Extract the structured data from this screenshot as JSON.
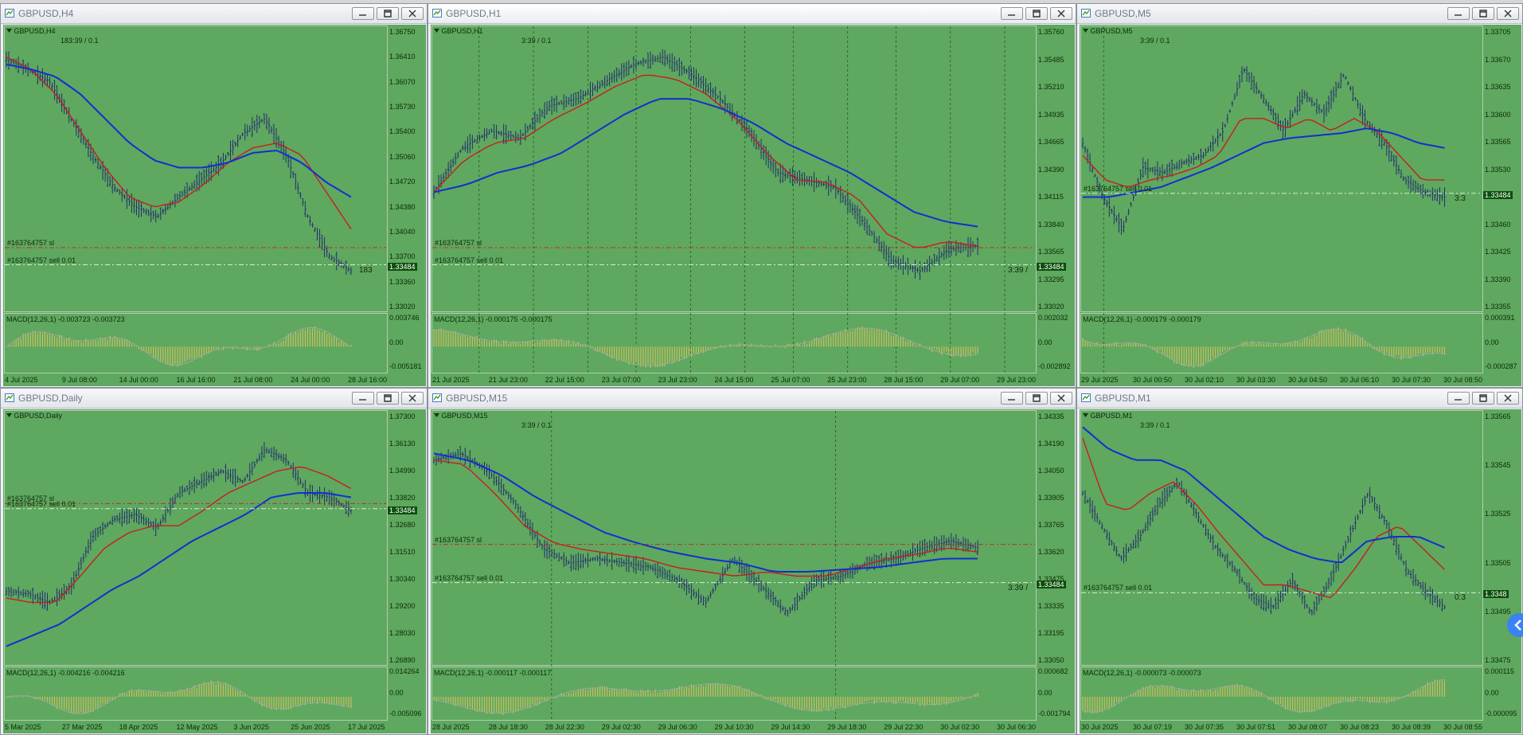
{
  "colors": {
    "chart_bg": "#5fa85f",
    "frame": "#b4cdb4",
    "ma_fast": "#c81e1e",
    "ma_slow": "#1030d0",
    "bars": "#23306e",
    "hist": "#c8c060",
    "order_sl": "#c82828",
    "order_line": "#d2f0d2"
  },
  "windows": [
    {
      "id": "h4",
      "title": "GBPUSD,H4",
      "label": "GBPUSD,H4",
      "timer": "183:39 / 0.1",
      "sl_label": "#163764757 sl",
      "order_label": "#163764757 sell 0.01",
      "price_ticks": [
        "1.36750",
        "1.36410",
        "1.36070",
        "1.35730",
        "1.35400",
        "1.35060",
        "1.34720",
        "1.34380",
        "1.34040",
        "1.33700",
        "1.33360",
        "1.33020"
      ],
      "current_price": "1.33484",
      "macd_label": "MACD(12,26,1) -0.003723 -0.003723",
      "macd_ticks": [
        "0.003746",
        "0.00",
        "-0.005181"
      ],
      "time_ticks": [
        "4 Jul 2025",
        "9 Jul 08:00",
        "14 Jul 00:00",
        "16 Jul 16:00",
        "21 Jul 08:00",
        "24 Jul 00:00",
        "28 Jul 16:00"
      ],
      "right_note": "183"
    },
    {
      "id": "h1",
      "title": "GBPUSD,H1",
      "label": "GBPUSD,H1",
      "timer": "3:39 / 0.1",
      "sl_label": "#163764757 sl",
      "order_label": "#163764757 sell 0.01",
      "price_ticks": [
        "1.35760",
        "1.35485",
        "1.35210",
        "1.34935",
        "1.34665",
        "1.34390",
        "1.34115",
        "1.33840",
        "1.33565",
        "1.33295",
        "1.33020"
      ],
      "current_price": "1.33484",
      "macd_label": "MACD(12,26,1) -0.000175 -0.000175",
      "macd_ticks": [
        "0.002032",
        "0.00",
        "-0.002892"
      ],
      "time_ticks": [
        "21 Jul 2025",
        "21 Jul 23:00",
        "22 Jul 15:00",
        "23 Jul 07:00",
        "23 Jul 23:00",
        "24 Jul 15:00",
        "25 Jul 07:00",
        "25 Jul 23:00",
        "28 Jul 15:00",
        "29 Jul 07:00",
        "29 Jul 23:00"
      ],
      "right_note": "3:39 /"
    },
    {
      "id": "m5",
      "title": "GBPUSD,M5",
      "label": "GBPUSD,M5",
      "timer": "3:39 / 0.1",
      "sl_label": "",
      "order_label": "#163764757 sell 0.01",
      "price_ticks": [
        "1.33705",
        "1.33670",
        "1.33635",
        "1.33600",
        "1.33565",
        "1.33530",
        "1.33495",
        "1.33460",
        "1.33425",
        "1.33390",
        "1.33355"
      ],
      "current_price": "1.33484",
      "macd_label": "MACD(12,26,1) -0.000179 -0.000179",
      "macd_ticks": [
        "0.000391",
        "0.00",
        "-0.000287"
      ],
      "time_ticks": [
        "29 Jul 2025",
        "30 Jul 00:50",
        "30 Jul 02:10",
        "30 Jul 03:30",
        "30 Jul 04:50",
        "30 Jul 06:10",
        "30 Jul 07:30",
        "30 Jul 08:50"
      ],
      "right_note": "3:3"
    },
    {
      "id": "d1",
      "title": "GBPUSD,Daily",
      "label": "GBPUSD,Daily",
      "timer": "",
      "sl_label": "#163764757 sl",
      "order_label": "#163764757 sell 0.01",
      "price_ticks": [
        "1.37300",
        "1.36130",
        "1.34990",
        "1.33820",
        "1.32680",
        "1.31510",
        "1.30340",
        "1.29200",
        "1.28030",
        "1.26890"
      ],
      "current_price": "1.33484",
      "macd_label": "MACD(12,26,1) -0.004216 -0.004216",
      "macd_ticks": [
        "0.014264",
        "0.00",
        "-0.005096"
      ],
      "time_ticks": [
        "5 Mar 2025",
        "27 Mar 2025",
        "18 Apr 2025",
        "12 May 2025",
        "3 Jun 2025",
        "25 Jun 2025",
        "17 Jul 2025"
      ],
      "right_note": ""
    },
    {
      "id": "m15",
      "title": "GBPUSD,M15",
      "label": "GBPUSD,M15",
      "timer": "3:39 / 0.1",
      "sl_label": "#163764757 sl",
      "order_label": "#163764757 sell 0.01",
      "price_ticks": [
        "1.34335",
        "1.34190",
        "1.34050",
        "1.33905",
        "1.33765",
        "1.33620",
        "1.33475",
        "1.33335",
        "1.33195",
        "1.33050"
      ],
      "current_price": "1.33484",
      "macd_label": "MACD(12,26,1) -0.000117 -0.000117",
      "macd_ticks": [
        "0.000682",
        "0.00",
        "-0.001794"
      ],
      "time_ticks": [
        "28 Jul 2025",
        "28 Jul 18:30",
        "28 Jul 22:30",
        "29 Jul 02:30",
        "29 Jul 06:30",
        "29 Jul 10:30",
        "29 Jul 14:30",
        "29 Jul 18:30",
        "29 Jul 22:30",
        "30 Jul 02:30",
        "30 Jul 06:30"
      ],
      "right_note": "3:39 /"
    },
    {
      "id": "m1",
      "title": "GBPUSD,M1",
      "label": "GBPUSD,M1",
      "timer": "3:39 / 0.1",
      "sl_label": "",
      "order_label": "#163764757 sell 0.01",
      "price_ticks": [
        "1.33565",
        "1.33545",
        "1.33525",
        "1.33505",
        "1.33495",
        "1.33475"
      ],
      "current_price": "1.3348",
      "macd_label": "MACD(12,26,1) -0.000073 -0.000073",
      "macd_ticks": [
        "0.000115",
        "0.00",
        "-0.000095"
      ],
      "time_ticks": [
        "30 Jul 2025",
        "30 Jul 07:19",
        "30 Jul 07:35",
        "30 Jul 07:51",
        "30 Jul 08:07",
        "30 Jul 08:23",
        "30 Jul 08:39",
        "30 Jul 08:55"
      ],
      "right_note": "0:3"
    }
  ]
}
